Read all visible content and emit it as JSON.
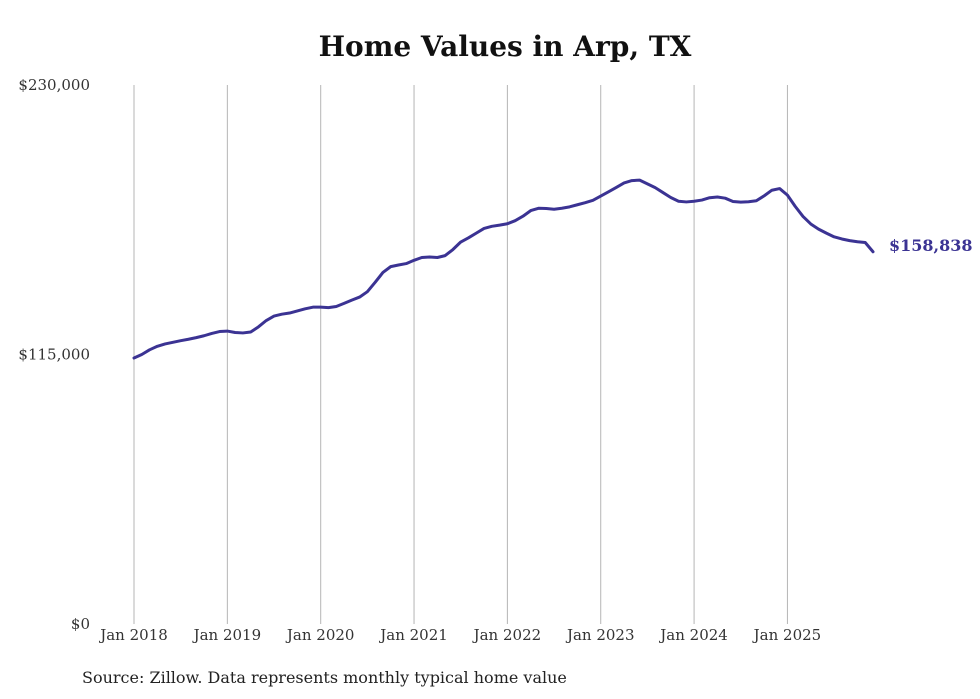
{
  "chart_data": {
    "type": "line",
    "title": "Home Values in Arp, TX",
    "xlabel": "",
    "ylabel": "",
    "ylim": [
      0,
      230000
    ],
    "y_ticks": [
      {
        "value": 0,
        "label": "$0"
      },
      {
        "value": 115000,
        "label": "$115,000"
      },
      {
        "value": 230000,
        "label": "$230,000"
      }
    ],
    "x_ticks": [
      {
        "value": 2018.0,
        "label": "Jan 2018"
      },
      {
        "value": 2019.0,
        "label": "Jan 2019"
      },
      {
        "value": 2020.0,
        "label": "Jan 2020"
      },
      {
        "value": 2021.0,
        "label": "Jan 2021"
      },
      {
        "value": 2022.0,
        "label": "Jan 2022"
      },
      {
        "value": 2023.0,
        "label": "Jan 2023"
      },
      {
        "value": 2024.0,
        "label": "Jan 2024"
      },
      {
        "value": 2025.0,
        "label": "Jan 2025"
      }
    ],
    "xlim": [
      2018.0,
      2025.9167
    ],
    "grid": "vertical",
    "series": [
      {
        "name": "Typical home value",
        "color": "#3b3393",
        "x": [
          2018.0,
          2018.0833,
          2018.1667,
          2018.25,
          2018.3333,
          2018.4167,
          2018.5,
          2018.5833,
          2018.6667,
          2018.75,
          2018.8333,
          2018.9167,
          2019.0,
          2019.0833,
          2019.1667,
          2019.25,
          2019.3333,
          2019.4167,
          2019.5,
          2019.5833,
          2019.6667,
          2019.75,
          2019.8333,
          2019.9167,
          2020.0,
          2020.0833,
          2020.1667,
          2020.25,
          2020.3333,
          2020.4167,
          2020.5,
          2020.5833,
          2020.6667,
          2020.75,
          2020.8333,
          2020.9167,
          2021.0,
          2021.0833,
          2021.1667,
          2021.25,
          2021.3333,
          2021.4167,
          2021.5,
          2021.5833,
          2021.6667,
          2021.75,
          2021.8333,
          2021.9167,
          2022.0,
          2022.0833,
          2022.1667,
          2022.25,
          2022.3333,
          2022.4167,
          2022.5,
          2022.5833,
          2022.6667,
          2022.75,
          2022.8333,
          2022.9167,
          2023.0,
          2023.0833,
          2023.1667,
          2023.25,
          2023.3333,
          2023.4167,
          2023.5,
          2023.5833,
          2023.6667,
          2023.75,
          2023.8333,
          2023.9167,
          2024.0,
          2024.0833,
          2024.1667,
          2024.25,
          2024.3333,
          2024.4167,
          2024.5,
          2024.5833,
          2024.6667,
          2024.75,
          2024.8333,
          2024.9167,
          2025.0,
          2025.0833,
          2025.1667,
          2025.25,
          2025.3333,
          2025.4167,
          2025.5,
          2025.5833,
          2025.6667,
          2025.75,
          2025.8333,
          2025.9167
        ],
        "values": [
          113500,
          115000,
          117000,
          118500,
          119500,
          120200,
          120900,
          121500,
          122200,
          123000,
          124000,
          124800,
          125000,
          124400,
          124200,
          124600,
          126800,
          129500,
          131400,
          132200,
          132700,
          133600,
          134500,
          135200,
          135200,
          135000,
          135500,
          136800,
          138200,
          139500,
          141800,
          145800,
          150000,
          152500,
          153200,
          153800,
          155200,
          156400,
          156600,
          156400,
          157200,
          159800,
          163000,
          164800,
          166800,
          168800,
          169700,
          170200,
          170800,
          172100,
          174000,
          176400,
          177400,
          177300,
          177000,
          177400,
          178000,
          178900,
          179800,
          180800,
          182600,
          184400,
          186300,
          188200,
          189200,
          189400,
          187800,
          186200,
          184100,
          182000,
          180400,
          180100,
          180400,
          180900,
          181900,
          182200,
          181700,
          180300,
          180000,
          180200,
          180600,
          182700,
          185100,
          185800,
          183000,
          178200,
          173900,
          170700,
          168500,
          166800,
          165200,
          164300,
          163600,
          163100,
          162800,
          158838
        ],
        "end_label": "$158,838"
      }
    ]
  },
  "source_note": "Source: Zillow. Data represents monthly typical home value"
}
